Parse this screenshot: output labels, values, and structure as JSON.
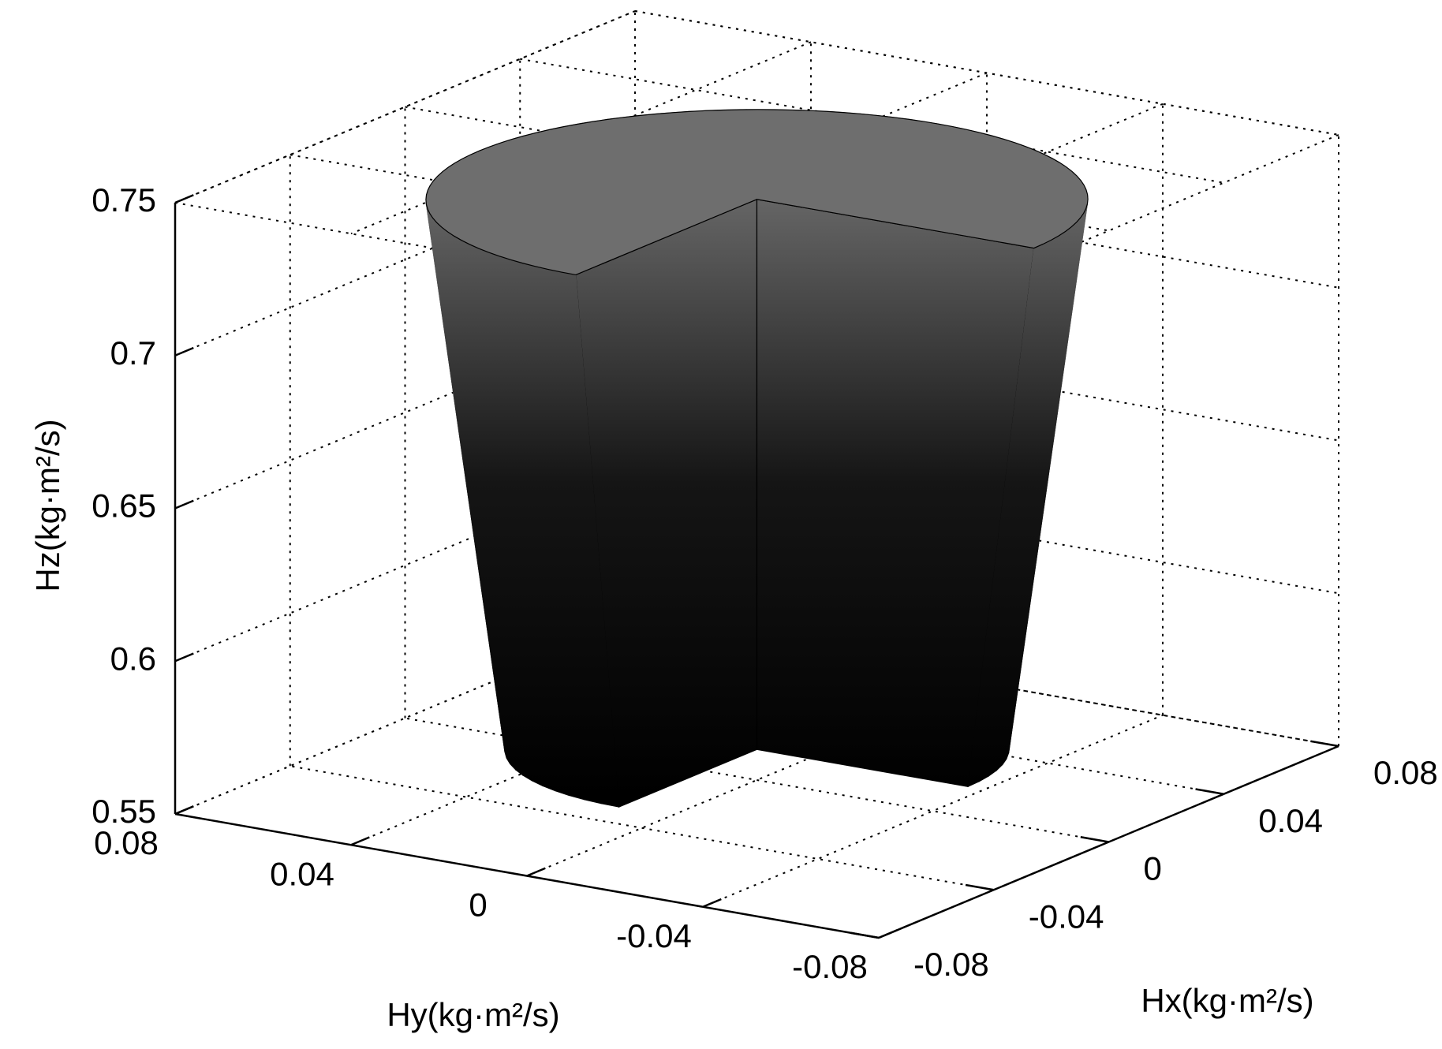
{
  "chart_data": {
    "type": "surface3d",
    "xlabel": "Hx(kg·m²/s)",
    "ylabel": "Hy(kg·m²/s)",
    "zlabel": "Hz(kg·m²/s)",
    "xlim": [
      -0.08,
      0.08
    ],
    "ylim": [
      -0.08,
      0.08
    ],
    "zlim": [
      0.55,
      0.75
    ],
    "xticks": [
      -0.08,
      -0.04,
      0,
      0.04,
      0.08
    ],
    "yticks": [
      -0.08,
      -0.04,
      0,
      0.04,
      0.08
    ],
    "zticks": [
      0.55,
      0.6,
      0.65,
      0.7,
      0.75
    ],
    "grid": true,
    "surface": {
      "z": [
        0.56,
        0.74
      ],
      "radius": [
        0.048,
        0.063
      ],
      "colors": [
        "#6e6e6e",
        "#000000"
      ]
    }
  }
}
